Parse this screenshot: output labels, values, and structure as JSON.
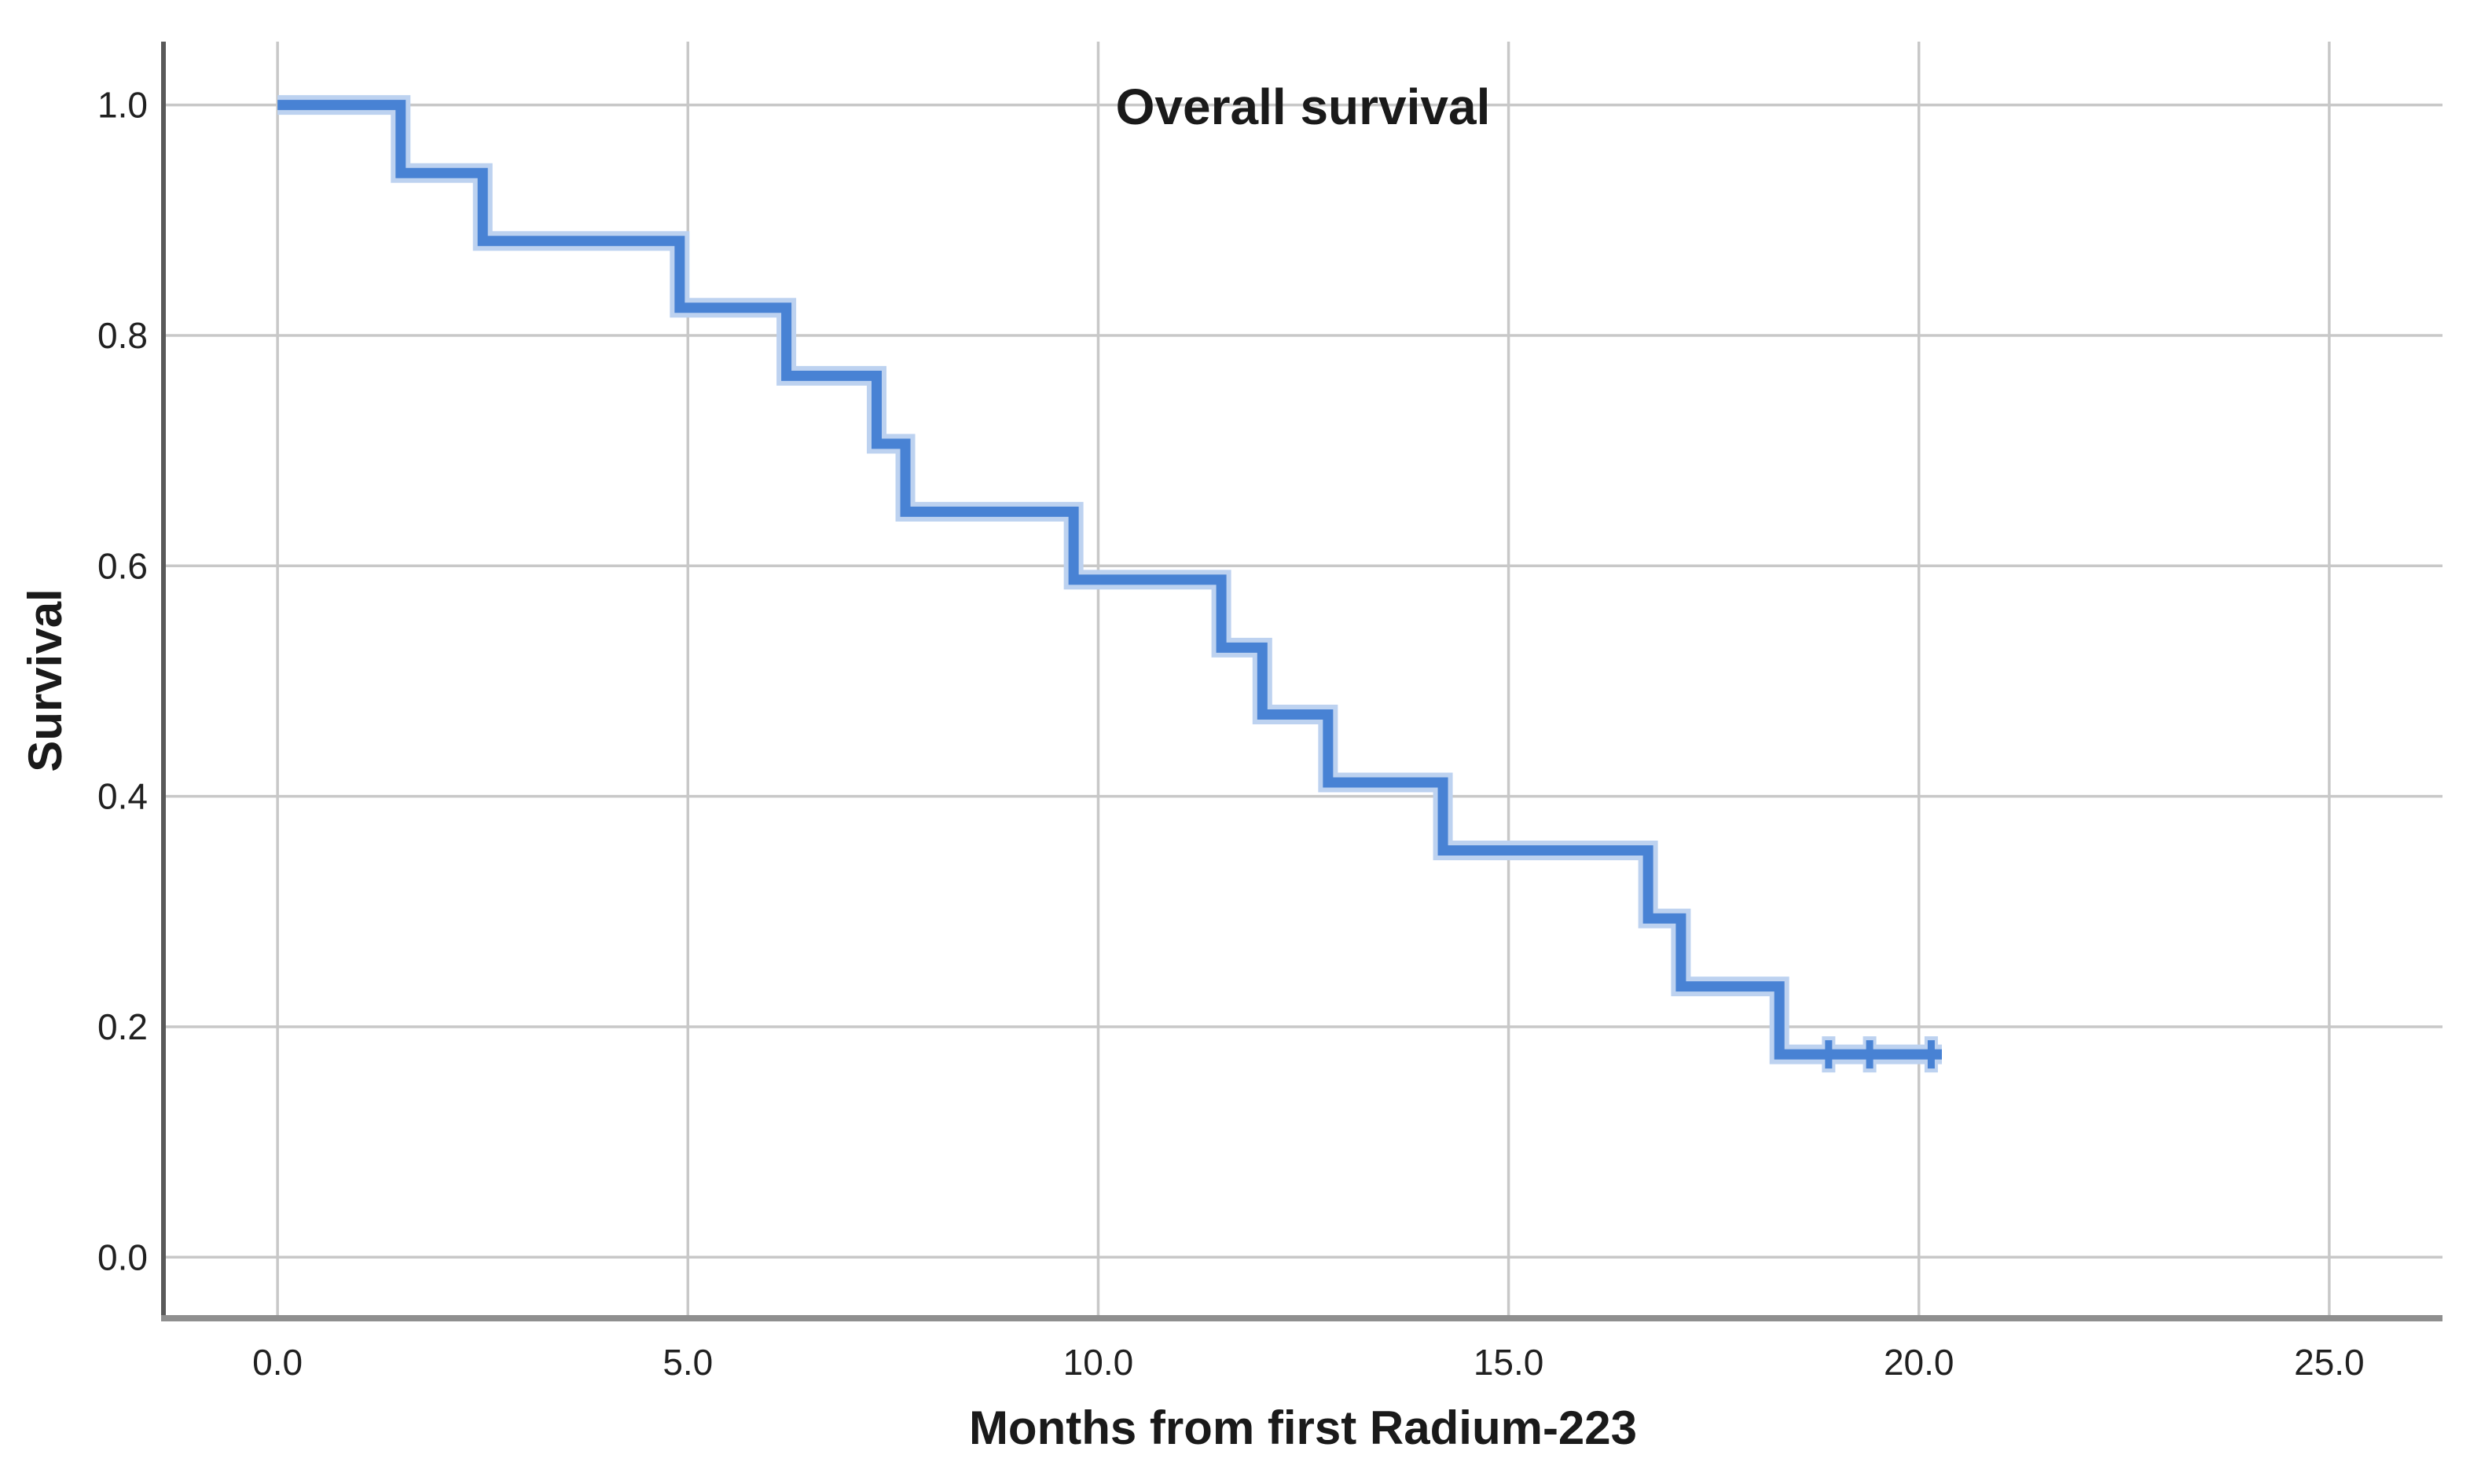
{
  "figure": {
    "title": "Overall survival",
    "x_axis": {
      "label": "Months from first Radium-223"
    },
    "y_axis": {
      "label": "Survival"
    }
  },
  "chart_data": {
    "type": "line",
    "subtype": "kaplan_meier_step_curve",
    "title": "Overall survival",
    "xlabel": "Months from first Radium-223",
    "ylabel": "Survival",
    "grid": true,
    "legend": "none",
    "xlim": [
      -1.39,
      26.38
    ],
    "ylim": [
      -0.053,
      1.055
    ],
    "x_tick_values": [
      0,
      5,
      10,
      15,
      20,
      25
    ],
    "x_tick_labels": [
      "0.0",
      "5.0",
      "10.0",
      "15.0",
      "20.0",
      "25.0"
    ],
    "y_tick_values": [
      1.0,
      0.8,
      0.6,
      0.4,
      0.2,
      0.0
    ],
    "y_tick_labels": [
      "1.0",
      "0.8",
      "0.6",
      "0.4",
      "0.2",
      "0.0"
    ],
    "series": [
      {
        "name": "Overall survival",
        "start": {
          "time": 0,
          "survival": 1.0
        },
        "steps": [
          {
            "time": 1.5,
            "survival": 0.941
          },
          {
            "time": 2.5,
            "survival": 0.882
          },
          {
            "time": 4.9,
            "survival": 0.824
          },
          {
            "time": 6.2,
            "survival": 0.765
          },
          {
            "time": 7.3,
            "survival": 0.706
          },
          {
            "time": 7.65,
            "survival": 0.647
          },
          {
            "time": 9.7,
            "survival": 0.588
          },
          {
            "time": 11.5,
            "survival": 0.529
          },
          {
            "time": 12.0,
            "survival": 0.471
          },
          {
            "time": 12.8,
            "survival": 0.412
          },
          {
            "time": 14.2,
            "survival": 0.353
          },
          {
            "time": 16.7,
            "survival": 0.294
          },
          {
            "time": 17.1,
            "survival": 0.235
          },
          {
            "time": 18.3,
            "survival": 0.176
          }
        ],
        "end_time": 20.28,
        "censored": [
          {
            "time": 18.9,
            "survival": 0.176
          },
          {
            "time": 19.4,
            "survival": 0.176
          },
          {
            "time": 20.15,
            "survival": 0.176
          }
        ]
      }
    ],
    "colors": {
      "curve": "#4882d4",
      "curve_halo": "#bdd2f0",
      "grid": "#c8c8c8",
      "frame_left": "#595959",
      "frame_bottom": "#8f8f8f",
      "text": "#1a1a1a",
      "background": "#ffffff"
    }
  }
}
